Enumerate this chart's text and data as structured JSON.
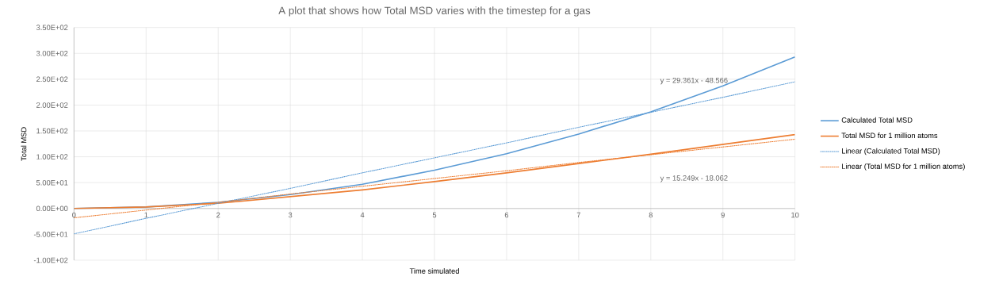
{
  "chart_data": {
    "type": "line",
    "title": "A plot that shows how Total MSD varies with the timestep for a gas",
    "xlabel": "Time simulated",
    "ylabel": "Total MSD",
    "x": [
      0,
      1,
      2,
      3,
      4,
      5,
      6,
      7,
      8,
      9,
      10
    ],
    "series": [
      {
        "name": "Calculated Total MSD",
        "color": "#5b9bd5",
        "values": [
          0,
          3,
          12,
          27,
          47,
          74,
          106,
          144,
          187,
          237,
          293
        ]
      },
      {
        "name": "Total MSD for 1 million atoms",
        "color": "#ed7d31",
        "values": [
          0,
          3,
          10,
          23,
          36,
          52,
          69,
          87,
          105,
          124,
          143
        ]
      },
      {
        "name": "Linear (Calculated Total MSD)",
        "color": "#5b9bd5",
        "line_style": "dotted",
        "values": [
          -49,
          -19,
          10,
          39,
          69,
          98,
          127,
          157,
          186,
          215,
          245
        ]
      },
      {
        "name": "Linear (Total MSD for 1 million atoms)",
        "color": "#ed7d31",
        "line_style": "dotted",
        "values": [
          -18,
          -3,
          12,
          28,
          43,
          58,
          73,
          89,
          104,
          119,
          134
        ]
      }
    ],
    "annotations": [
      "y = 29.361x - 48.566",
      "y = 15.249x - 18.062"
    ],
    "xlim": [
      0,
      10
    ],
    "xticks": [
      0,
      1,
      2,
      3,
      4,
      5,
      6,
      7,
      8,
      9,
      10
    ],
    "ylim": [
      -100,
      350
    ],
    "yticks": [
      {
        "value": -100,
        "label": "-1.00E+02"
      },
      {
        "value": -50,
        "label": "-5.00E+01"
      },
      {
        "value": 0,
        "label": "0.00E+00"
      },
      {
        "value": 50,
        "label": "5.00E+01"
      },
      {
        "value": 100,
        "label": "1.00E+02"
      },
      {
        "value": 150,
        "label": "1.50E+02"
      },
      {
        "value": 200,
        "label": "2.00E+02"
      },
      {
        "value": 250,
        "label": "2.50E+02"
      },
      {
        "value": 300,
        "label": "3.00E+02"
      },
      {
        "value": 350,
        "label": "3.50E+02"
      }
    ],
    "grid": true,
    "legend": "right",
    "marker": "none",
    "line_style": "solid"
  }
}
